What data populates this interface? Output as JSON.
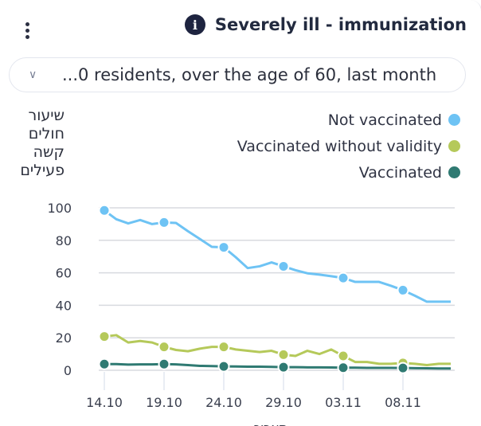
{
  "header": {
    "title": "Severely ill - immunization",
    "info_icon": "info-icon",
    "menu_icon": "more-vertical-icon"
  },
  "filter": {
    "selected": "...0 residents, over the age of 60, last month"
  },
  "chart_data": {
    "type": "line",
    "title": "Severely ill - immunization",
    "ylabel": "שיעור חולים קשה פעילים",
    "xlabel": "תאריך",
    "ylim": [
      0,
      100
    ],
    "yticks": [
      "0",
      "20",
      "40",
      "60",
      "80",
      "100"
    ],
    "xticks": [
      "14.10",
      "19.10",
      "24.10",
      "29.10",
      "03.11",
      "08.11"
    ],
    "grid": true,
    "legend_placement": "top-right",
    "x": [
      "14.10",
      "15.10",
      "16.10",
      "17.10",
      "18.10",
      "19.10",
      "20.10",
      "21.10",
      "22.10",
      "23.10",
      "24.10",
      "25.10",
      "26.10",
      "27.10",
      "28.10",
      "29.10",
      "30.10",
      "31.10",
      "01.11",
      "02.11",
      "03.11",
      "04.11",
      "05.11",
      "06.11",
      "07.11",
      "08.11",
      "09.11",
      "10.11",
      "11.11",
      "12.11"
    ],
    "series": [
      {
        "name": "Not vaccinated",
        "color": "#6ec3f4",
        "values": [
          98.4,
          93,
          90.4,
          92.5,
          90,
          91,
          90.7,
          85.6,
          80.8,
          76,
          75.7,
          69.6,
          62.9,
          64,
          66.4,
          64,
          61.6,
          59.7,
          58.9,
          57.9,
          56.8,
          54.4,
          54.4,
          54.4,
          52,
          49.3,
          45.9,
          42.2,
          42.2,
          42.2
        ]
      },
      {
        "name": "Vaccinated without validity",
        "color": "#b5c95a",
        "values": [
          20.8,
          21.6,
          17.1,
          18,
          17.1,
          14.4,
          12.5,
          11.7,
          13.3,
          14.4,
          14.4,
          12.8,
          12,
          11.2,
          12,
          9.6,
          8.8,
          12,
          10,
          12.8,
          8.8,
          5.1,
          5.1,
          4,
          4,
          4.5,
          4,
          3.2,
          4,
          4
        ]
      },
      {
        "name": "Vaccinated",
        "color": "#2f7a72",
        "values": [
          3.8,
          3.8,
          3.5,
          3.6,
          3.6,
          3.8,
          3.6,
          3.2,
          2.7,
          2.6,
          2.4,
          2.3,
          2.2,
          2.2,
          2.1,
          1.9,
          1.9,
          1.8,
          1.8,
          1.7,
          1.6,
          1.6,
          1.5,
          1.5,
          1.5,
          1.4,
          1.3,
          1.2,
          1.1,
          1.1
        ]
      }
    ]
  }
}
